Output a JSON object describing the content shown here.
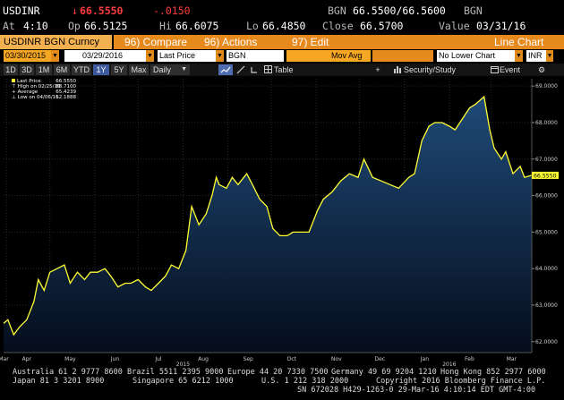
{
  "quote": {
    "ticker": "USDINR",
    "direction_glyph": "↓",
    "last": "66.5550",
    "change": "-.0150",
    "bid_source": "BGN",
    "bid_ask": "66.5500/66.5600",
    "ask_source": "BGN",
    "time_label": "At",
    "time": "4:10",
    "open_label": "Op",
    "open": "66.5125",
    "high_label": "Hi",
    "high": "66.6075",
    "low_label": "Lo",
    "low": "66.4850",
    "close_label": "Close",
    "close": "66.5700",
    "value_label": "Value",
    "value_date": "03/31/16"
  },
  "function_bar": {
    "security_name": "USDINR BGN Curncy",
    "compare": "96) Compare",
    "actions": "96) Actions",
    "edit": "97) Edit",
    "chart_type": "Line Chart"
  },
  "controls": {
    "start_date": "03/30/2015",
    "end_date": "03/29/2016",
    "field": "Last Price",
    "source": "BGN",
    "study": "Mov Avg",
    "lower_chart": "No Lower Chart",
    "currency": "INR"
  },
  "period_bar": {
    "periods": [
      "1D",
      "3D",
      "1M",
      "6M",
      "YTD",
      "1Y",
      "5Y",
      "Max"
    ],
    "active_period": "1Y",
    "frequency": "Daily",
    "table_label": "Table",
    "security_study": "Security/Study",
    "event": "Event"
  },
  "legend": {
    "last_price_label": "Last Price",
    "last_price": "66.5550",
    "high_label": "High on 02/25/16",
    "high": "68.7100",
    "average_label": "Average",
    "average": "65.4239",
    "low_label": "Low on 04/06/15",
    "low": "62.1888"
  },
  "colors": {
    "line": "#ffff33",
    "area_top": "#1f4a78",
    "area_bottom": "#050d1c",
    "function_bar": "#e78a1e",
    "last_price_tag": "#ffff33"
  },
  "chart_data": {
    "type": "area",
    "ylim": [
      61.7,
      69.2
    ],
    "y_ticks": [
      62,
      63,
      64,
      65,
      66,
      67,
      68,
      69
    ],
    "y_tick_labels": [
      "62.0000",
      "63.0000",
      "64.0000",
      "65.0000",
      "66.0000",
      "67.0000",
      "68.0000",
      "69.0000"
    ],
    "last_price_tag": "66.5550",
    "x_month_labels": [
      "Mar",
      "Apr",
      "May",
      "Jun",
      "Jul",
      "Aug",
      "Sep",
      "Oct",
      "Nov",
      "Dec",
      "Jan",
      "Feb",
      "Mar"
    ],
    "x_year_labels": [
      "2015",
      "2016"
    ],
    "series": [
      {
        "x": [
          "2015-03-30",
          "2015-04-02",
          "2015-04-06",
          "2015-04-10",
          "2015-04-15",
          "2015-04-20",
          "2015-04-23",
          "2015-04-27",
          "2015-05-01",
          "2015-05-06",
          "2015-05-11",
          "2015-05-15",
          "2015-05-20",
          "2015-05-25",
          "2015-05-29",
          "2015-06-03",
          "2015-06-08",
          "2015-06-12",
          "2015-06-17",
          "2015-06-22",
          "2015-06-26",
          "2015-07-01",
          "2015-07-06",
          "2015-07-10",
          "2015-07-15",
          "2015-07-20",
          "2015-07-24",
          "2015-07-29",
          "2015-08-03",
          "2015-08-07",
          "2015-08-12",
          "2015-08-17",
          "2015-08-21",
          "2015-08-24",
          "2015-08-26",
          "2015-08-31",
          "2015-09-04",
          "2015-09-08",
          "2015-09-14",
          "2015-09-18",
          "2015-09-23",
          "2015-09-28",
          "2015-10-02",
          "2015-10-07",
          "2015-10-12",
          "2015-10-16",
          "2015-10-21",
          "2015-10-27",
          "2015-11-02",
          "2015-11-06",
          "2015-11-12",
          "2015-11-18",
          "2015-11-24",
          "2015-11-30",
          "2015-12-04",
          "2015-12-10",
          "2015-12-16",
          "2015-12-22",
          "2015-12-28",
          "2016-01-04",
          "2016-01-08",
          "2016-01-13",
          "2016-01-18",
          "2016-01-22",
          "2016-01-27",
          "2016-02-01",
          "2016-02-05",
          "2016-02-10",
          "2016-02-15",
          "2016-02-19",
          "2016-02-25",
          "2016-02-29",
          "2016-03-03",
          "2016-03-08",
          "2016-03-11",
          "2016-03-16",
          "2016-03-21",
          "2016-03-24",
          "2016-03-29"
        ],
        "y": [
          62.5,
          62.6,
          62.19,
          62.4,
          62.6,
          63.1,
          63.7,
          63.4,
          63.9,
          64.0,
          64.1,
          63.6,
          63.9,
          63.7,
          63.9,
          63.9,
          64.0,
          63.8,
          63.5,
          63.6,
          63.6,
          63.7,
          63.5,
          63.4,
          63.6,
          63.8,
          64.1,
          64.0,
          64.5,
          65.7,
          65.2,
          65.5,
          66.0,
          66.5,
          66.3,
          66.2,
          66.5,
          66.3,
          66.6,
          66.3,
          65.9,
          65.7,
          65.1,
          64.9,
          64.9,
          65.0,
          65.0,
          65.0,
          65.6,
          65.9,
          66.1,
          66.4,
          66.6,
          66.5,
          67.0,
          66.5,
          66.4,
          66.3,
          66.2,
          66.5,
          66.6,
          67.5,
          67.9,
          68.0,
          68.0,
          67.9,
          67.8,
          68.1,
          68.4,
          68.5,
          68.71,
          67.8,
          67.3,
          67.0,
          67.2,
          66.6,
          66.8,
          66.5,
          66.555
        ]
      }
    ],
    "grid": true,
    "legend_position": "top-left"
  },
  "footer": {
    "line1_left": "Australia 61 2 9777 8600",
    "line1_brazil": "Brazil 5511 2395 9000",
    "line1_europe": "Europe 44 20 7330 7500",
    "line1_germany": "Germany 49 69 9204 1210",
    "line1_hk": "Hong Kong 852 2977 6000",
    "line2_japan": "Japan 81 3 3201 8900",
    "line2_singapore": "Singapore 65 6212 1000",
    "line2_us": "U.S. 1 212 318 2000",
    "line2_copyright": "Copyright 2016 Bloomberg Finance L.P.",
    "line3": "SN 672028 H429-1263-0 29-Mar-16  4:10:14 EDT  GMT-4:00"
  }
}
